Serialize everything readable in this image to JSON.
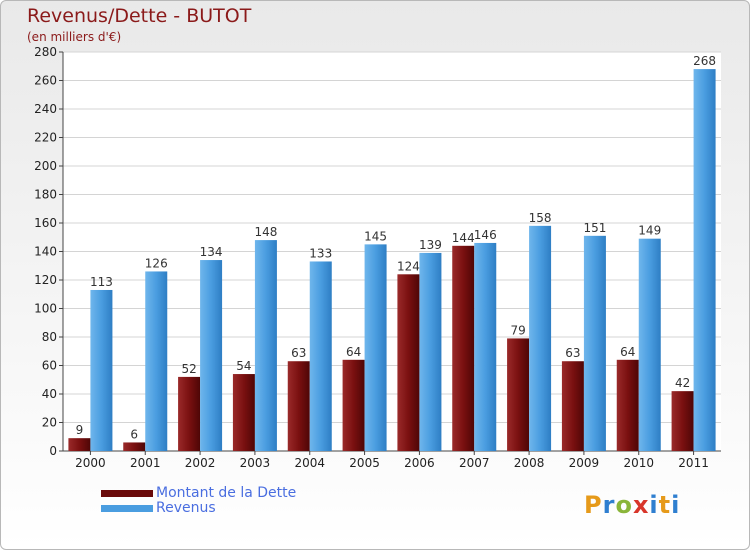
{
  "chart_data": {
    "type": "bar",
    "title": "Revenus/Dette - BUTOT",
    "subtitle": "(en milliers d'€)",
    "categories": [
      "2000",
      "2001",
      "2002",
      "2003",
      "2004",
      "2005",
      "2006",
      "2007",
      "2008",
      "2009",
      "2010",
      "2011"
    ],
    "series": [
      {
        "name": "Montant de la Dette",
        "color": "#7a0f0f",
        "values": [
          9,
          6,
          52,
          54,
          63,
          64,
          124,
          144,
          79,
          63,
          64,
          42
        ]
      },
      {
        "name": "Revenus",
        "color": "#4a9de0",
        "values": [
          113,
          126,
          134,
          148,
          133,
          145,
          139,
          146,
          158,
          151,
          149,
          268
        ]
      }
    ],
    "yticks": [
      0,
      20,
      40,
      60,
      80,
      100,
      120,
      140,
      160,
      180,
      200,
      220,
      240,
      260,
      280
    ],
    "ylim": [
      0,
      280
    ],
    "grid": true,
    "legend_position": "bottom-left"
  },
  "logo_text": "Proxiti"
}
